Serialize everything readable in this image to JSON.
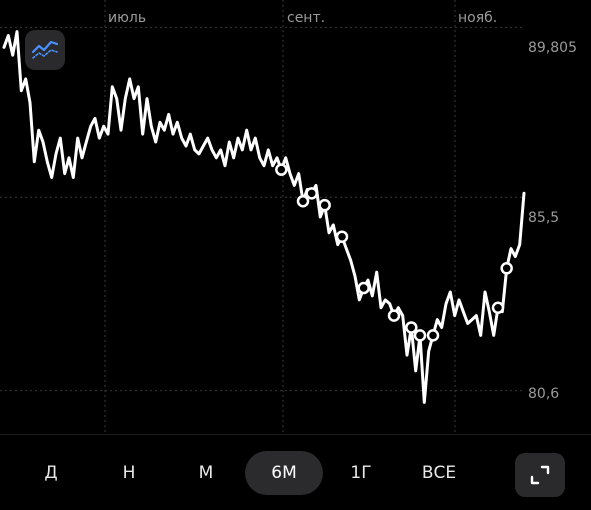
{
  "chart_data": {
    "type": "line",
    "x_labels": [
      "июль",
      "сент.",
      "нояб."
    ],
    "y_labels": [
      "89,805",
      "85,5",
      "80,6"
    ],
    "y_ticks": [
      89.805,
      85.5,
      80.6
    ],
    "ylim": [
      79.5,
      90.5
    ],
    "grid": true,
    "series": [
      {
        "values": [
          89.3,
          89.6,
          89.1,
          89.7,
          88.2,
          88.5,
          87.9,
          86.4,
          87.2,
          86.9,
          86.4,
          86.0,
          86.6,
          87.0,
          86.1,
          86.5,
          86.0,
          87.0,
          86.5,
          86.9,
          87.3,
          87.5,
          87.0,
          87.3,
          87.1,
          88.3,
          88.0,
          87.2,
          88.0,
          88.5,
          88.0,
          88.3,
          87.1,
          88.0,
          87.3,
          86.9,
          87.4,
          87.2,
          87.6,
          87.1,
          87.4,
          87.0,
          86.8,
          87.1,
          86.7,
          86.6,
          86.8,
          87.0,
          86.7,
          86.5,
          86.7,
          86.3,
          86.9,
          86.5,
          87.0,
          86.7,
          87.2,
          86.7,
          87.0,
          86.5,
          86.3,
          86.7,
          86.3,
          86.5,
          86.2,
          86.5,
          86.1,
          85.8,
          86.1,
          85.4,
          85.7,
          85.6,
          85.8,
          85.0,
          85.3,
          84.6,
          84.8,
          84.3,
          84.5,
          84.2,
          83.9,
          83.5,
          82.9,
          83.2,
          83.4,
          83.0,
          83.6,
          82.7,
          82.9,
          82.8,
          82.5,
          82.7,
          82.5,
          81.5,
          82.2,
          81.1,
          82.0,
          80.3,
          81.6,
          82.0,
          82.4,
          82.2,
          82.8,
          83.1,
          82.5,
          82.9,
          82.6,
          82.3,
          82.4,
          82.5,
          82.0,
          83.1,
          82.6,
          82.0,
          82.7,
          82.6,
          83.7,
          84.2,
          84.0,
          84.3,
          85.6
        ],
        "markers": [
          64,
          69,
          71,
          74,
          78,
          83,
          90,
          94,
          96,
          99,
          114,
          116
        ]
      }
    ]
  },
  "chart_button": {
    "icon": "line-chart-icon"
  },
  "toolbar": {
    "tabs": [
      {
        "label": "Д",
        "active": false
      },
      {
        "label": "Н",
        "active": false
      },
      {
        "label": "М",
        "active": false
      },
      {
        "label": "6М",
        "active": true
      },
      {
        "label": "1Г",
        "active": false
      },
      {
        "label": "ВСЕ",
        "active": false
      }
    ],
    "expand_icon": "expand-icon"
  },
  "colors": {
    "line": "#ffffff",
    "grid": "#3a3a3a",
    "accent": "#4a90ff",
    "muted": "#9a9a9a"
  }
}
